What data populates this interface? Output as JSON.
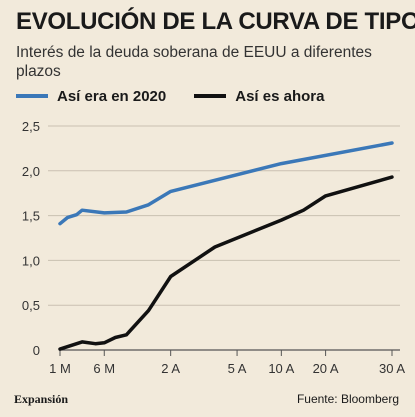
{
  "header": {
    "title": "EVOLUCIÓN DE LA CURVA DE TIPOS",
    "subtitle": "Interés de la deuda soberana de EEUU a diferentes plazos"
  },
  "footer": {
    "brand": "Expansión",
    "source": "Fuente: Bloomberg"
  },
  "chart_data": {
    "type": "line",
    "title": "EVOLUCIÓN DE LA CURVA DE TIPOS",
    "subtitle": "Interés de la deuda soberana de EEUU a diferentes plazos",
    "x_ticks": [
      "1 M",
      "6 M",
      "2 A",
      "5 A",
      "10 A",
      "20 A",
      "30 A"
    ],
    "x_tick_positions": [
      0,
      2,
      5,
      8,
      10,
      12,
      15
    ],
    "y_ticks": [
      "0",
      "0,5",
      "1,0",
      "1,5",
      "2,0",
      "2,5"
    ],
    "ylim": [
      0,
      2.5
    ],
    "xlim": [
      0,
      15
    ],
    "grid": true,
    "legend_position": "top",
    "series": [
      {
        "name": "Así era en 2020",
        "color": "#3b78b8",
        "x": [
          0,
          0.35,
          0.75,
          1.0,
          2.0,
          3.0,
          4.0,
          5.0,
          10.0,
          15.0
        ],
        "values": [
          1.41,
          1.48,
          1.51,
          1.56,
          1.53,
          1.54,
          1.62,
          1.77,
          2.08,
          2.31
        ]
      },
      {
        "name": "Así es ahora",
        "color": "#111111",
        "x": [
          0,
          1.0,
          1.6,
          2.0,
          2.5,
          3.0,
          4.0,
          5.0,
          7.0,
          10.0,
          11.0,
          12.0,
          15.0
        ],
        "values": [
          0.01,
          0.09,
          0.07,
          0.08,
          0.14,
          0.17,
          0.44,
          0.82,
          1.15,
          1.45,
          1.56,
          1.72,
          1.93
        ]
      }
    ]
  }
}
